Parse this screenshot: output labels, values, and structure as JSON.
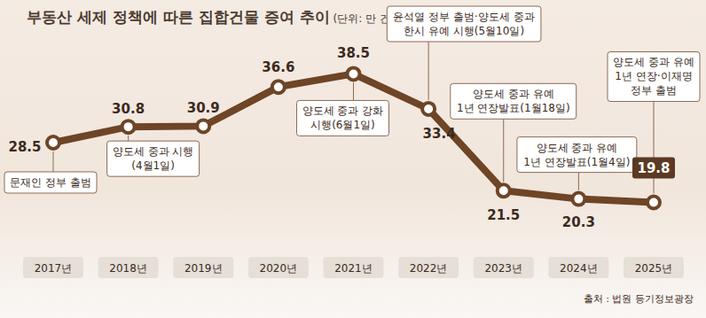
{
  "chart_data": {
    "type": "line",
    "title": "부동산 세제 정책에 따른 집합건물 증여 추이",
    "subtitle": "(단위: 만 건)",
    "source": "출처 : 법원 등기정보광장",
    "categories": [
      "2017년",
      "2018년",
      "2019년",
      "2020년",
      "2021년",
      "2022년",
      "2023년",
      "2024년",
      "2025년"
    ],
    "values": [
      28.5,
      30.8,
      30.9,
      36.6,
      38.5,
      33.4,
      21.5,
      20.3,
      19.8
    ],
    "color": "#6e4526",
    "marker": "circle",
    "data_labels": true,
    "tick_labels": "x",
    "ylim": [
      12,
      45
    ],
    "annotations": [
      {
        "category": "2017년",
        "text": "문재인 정부 출범"
      },
      {
        "category": "2018년",
        "text": "양도세 중과 시행\n(4월1일)"
      },
      {
        "category": "2021년",
        "text": "양도세 중과 강화\n시행(6월1일)"
      },
      {
        "category": "2022년",
        "text": "윤석열 정부 출범·양도세 중과\n한시 유예 시행(5월10일)"
      },
      {
        "category": "2023년",
        "text": "양도세 중과 유예\n1년 연장발표(1월18일)"
      },
      {
        "category": "2024년",
        "text": "양도세 중과 유예\n1년 연장발표(1월4일)"
      },
      {
        "category": "2025년",
        "text": "양도세 중과 유예\n1년 연장·이재명\n정부 출범"
      }
    ]
  }
}
